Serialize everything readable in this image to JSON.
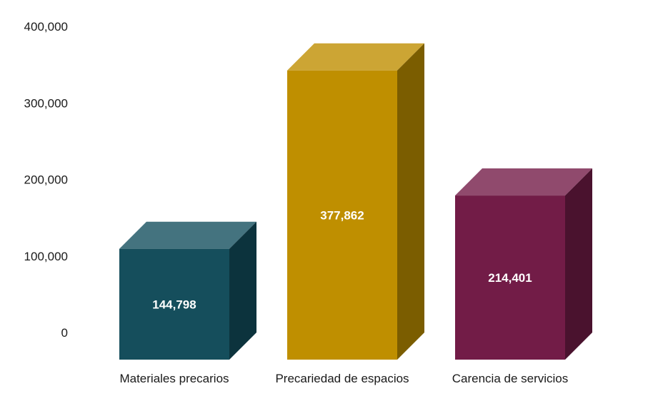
{
  "chart_data": {
    "type": "bar",
    "style": "3d-column",
    "categories": [
      "Materiales precarios",
      "Precariedad de espacios",
      "Carencia de servicios"
    ],
    "values": [
      144798,
      377862,
      214401
    ],
    "data_labels": [
      "144,798",
      "377,862",
      "214,401"
    ],
    "ylim": [
      0,
      400000
    ],
    "yticks": [
      0,
      100000,
      200000,
      300000,
      400000
    ],
    "ytick_labels": [
      "0",
      "100,000",
      "200,000",
      "300,000",
      "400,000"
    ],
    "grid": false,
    "legend": "none",
    "colors": [
      {
        "front": "#154e5c",
        "top": "#44737f",
        "side": "#0c333d"
      },
      {
        "front": "#bf8f00",
        "top": "#cca534",
        "side": "#7b5d00"
      },
      {
        "front": "#721c47",
        "top": "#904a6d",
        "side": "#4a122e"
      }
    ]
  }
}
